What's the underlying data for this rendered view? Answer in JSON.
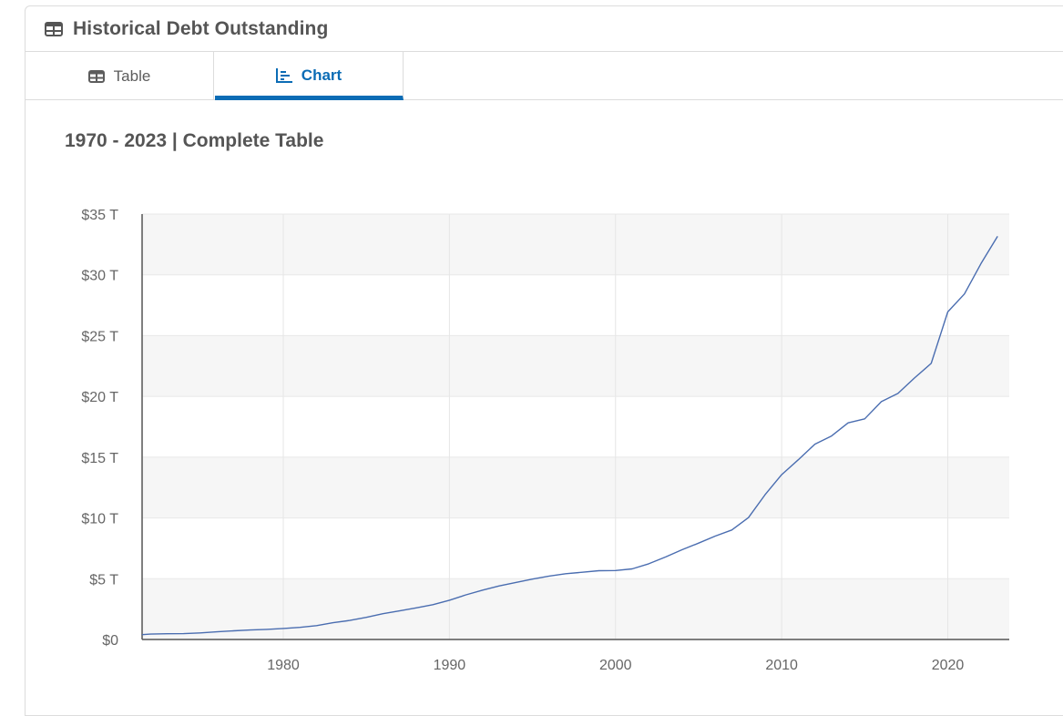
{
  "panel": {
    "title": "Historical Debt Outstanding",
    "title_icon": "table-icon"
  },
  "tabs": [
    {
      "label": "Table",
      "icon": "table-icon",
      "active": false
    },
    {
      "label": "Chart",
      "icon": "bar-chart-icon",
      "active": true
    }
  ],
  "chart_section": {
    "subtitle": "1970 - 2023 | Complete Table"
  },
  "colors": {
    "accent": "#0b6cb5",
    "line": "#4a6db0",
    "band": "#f6f6f6",
    "text": "#555555"
  },
  "chart_data": {
    "type": "line",
    "title": "",
    "xlabel": "",
    "ylabel": "",
    "xlim": [
      1971.5,
      2023.7
    ],
    "ylim": [
      0,
      35
    ],
    "y_ticks": [
      0,
      5,
      10,
      15,
      20,
      25,
      30,
      35
    ],
    "y_tick_labels": [
      "$0",
      "$5 T",
      "$10 T",
      "$15 T",
      "$20 T",
      "$25 T",
      "$30 T",
      "$35 T"
    ],
    "x_ticks": [
      1980,
      1990,
      2000,
      2010,
      2020
    ],
    "x_tick_labels": [
      "1980",
      "1990",
      "2000",
      "2010",
      "2020"
    ],
    "grid": true,
    "legend": "none",
    "series": [
      {
        "name": "",
        "x": [
          1971,
          1972,
          1973,
          1974,
          1975,
          1976,
          1977,
          1978,
          1979,
          1980,
          1981,
          1982,
          1983,
          1984,
          1985,
          1986,
          1987,
          1988,
          1989,
          1990,
          1991,
          1992,
          1993,
          1994,
          1995,
          1996,
          1997,
          1998,
          1999,
          2000,
          2001,
          2002,
          2003,
          2004,
          2005,
          2006,
          2007,
          2008,
          2009,
          2010,
          2011,
          2012,
          2013,
          2014,
          2015,
          2016,
          2017,
          2018,
          2019,
          2020,
          2021,
          2022,
          2023
        ],
        "values": [
          0.4,
          0.44,
          0.47,
          0.48,
          0.54,
          0.63,
          0.71,
          0.78,
          0.83,
          0.91,
          1.0,
          1.14,
          1.38,
          1.57,
          1.82,
          2.12,
          2.35,
          2.6,
          2.86,
          3.23,
          3.67,
          4.06,
          4.41,
          4.69,
          4.97,
          5.22,
          5.41,
          5.53,
          5.66,
          5.67,
          5.81,
          6.23,
          6.78,
          7.38,
          7.93,
          8.51,
          9.01,
          10.03,
          11.91,
          13.56,
          14.79,
          16.07,
          16.74,
          17.82,
          18.15,
          19.57,
          20.24,
          21.52,
          22.72,
          26.95,
          28.43,
          30.93,
          33.17
        ]
      }
    ]
  }
}
